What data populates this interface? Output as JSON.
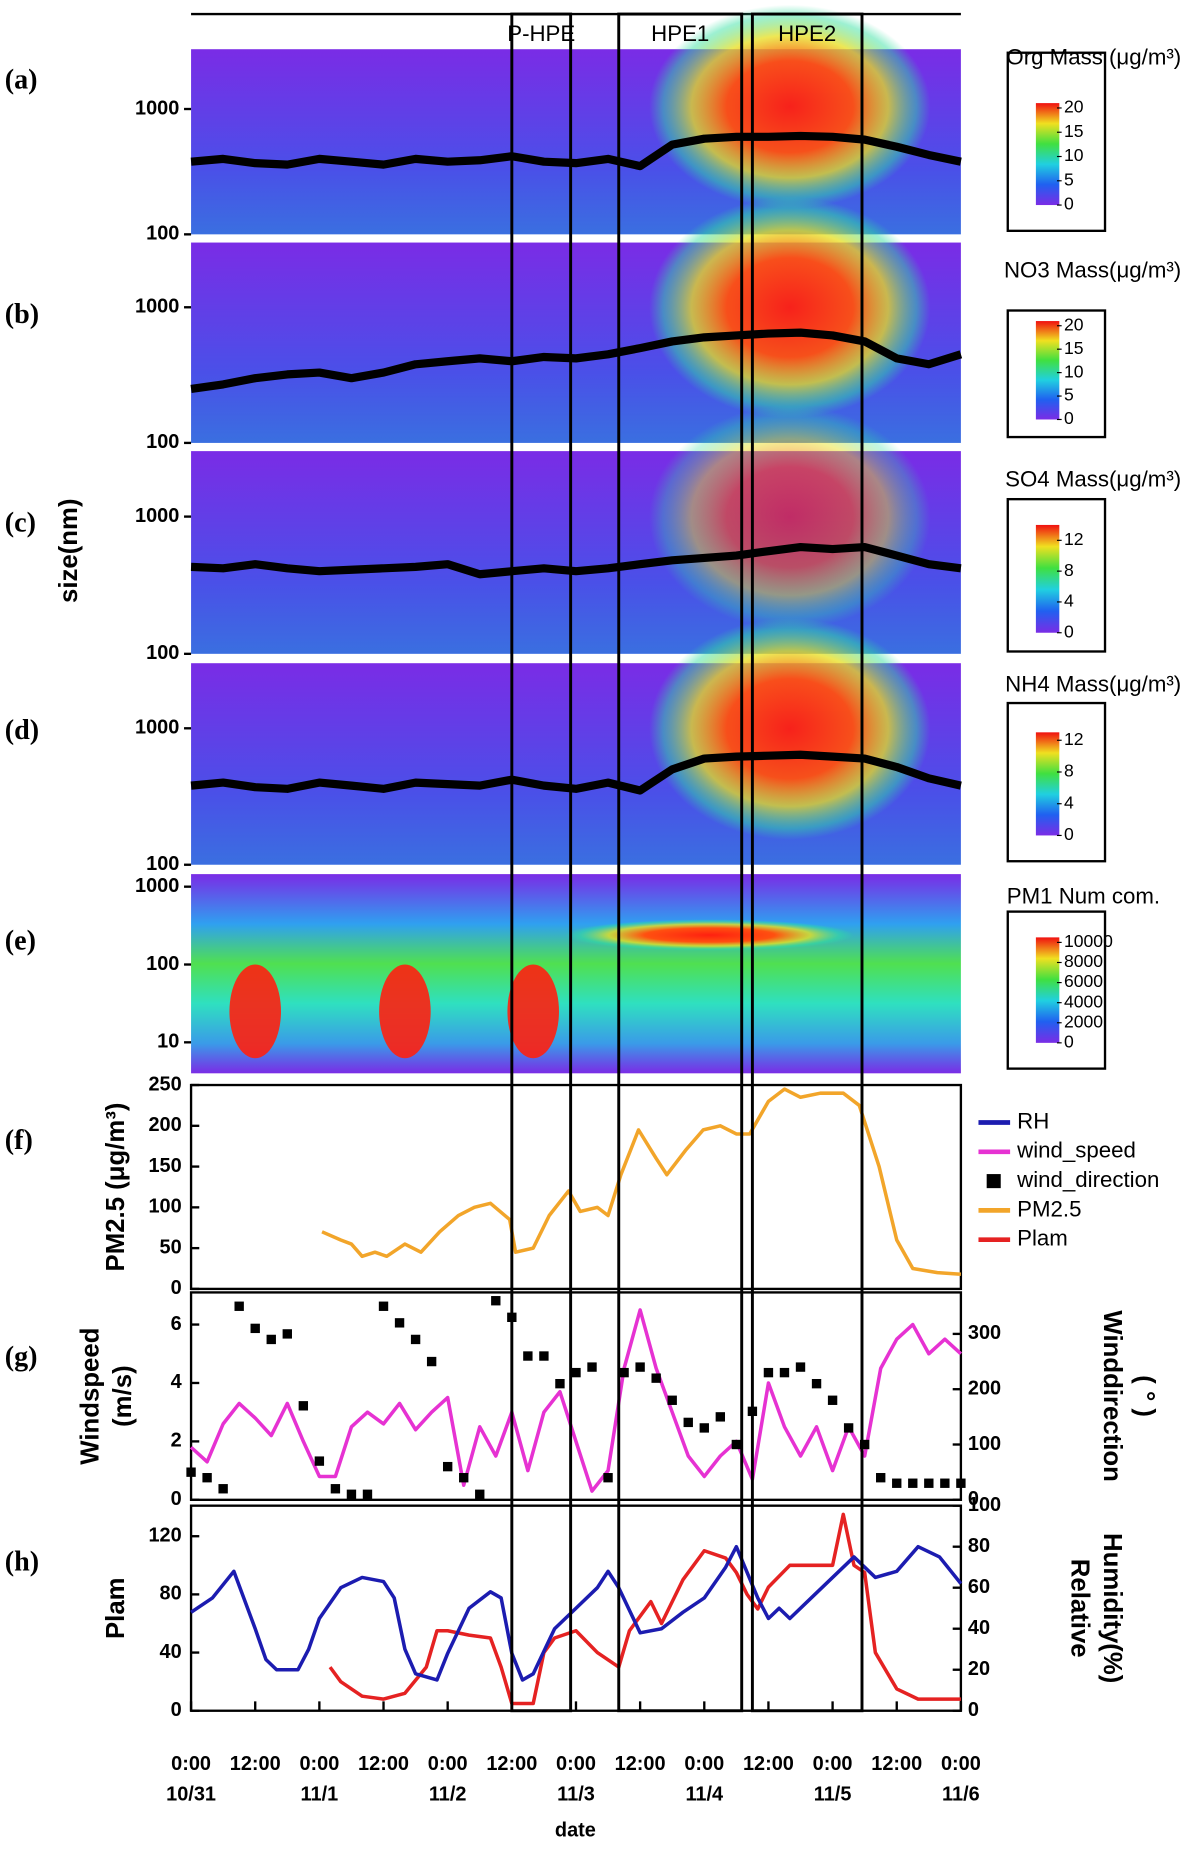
{
  "shared": {
    "xlim": [
      0,
      144
    ],
    "xlabel": "date",
    "ylabel": "size(nm)",
    "xticks": [
      {
        "value": 0,
        "label": "0:00"
      },
      {
        "value": 12,
        "label": "12:00"
      },
      {
        "value": 24,
        "label": "0:00"
      },
      {
        "value": 36,
        "label": "12:00"
      },
      {
        "value": 48,
        "label": "0:00"
      },
      {
        "value": 60,
        "label": "12:00"
      },
      {
        "value": 72,
        "label": "0:00"
      },
      {
        "value": 84,
        "label": "12:00"
      },
      {
        "value": 96,
        "label": "0:00"
      },
      {
        "value": 108,
        "label": "12:00"
      },
      {
        "value": 120,
        "label": "0:00"
      },
      {
        "value": 132,
        "label": "12:00"
      },
      {
        "value": 144,
        "label": "0:00"
      }
    ],
    "xtick_dates": [
      {
        "value": 0,
        "label": "10/31"
      },
      {
        "value": 24,
        "label": "11/1"
      },
      {
        "value": 48,
        "label": "11/2"
      },
      {
        "value": 72,
        "label": "11/3"
      },
      {
        "value": 96,
        "label": "11/4"
      },
      {
        "value": 120,
        "label": "11/5"
      },
      {
        "value": 144,
        "label": "11/6"
      }
    ],
    "annotations": [
      {
        "label": "P-HPE",
        "x": [
          60,
          71
        ]
      },
      {
        "label": "HPE1",
        "x": [
          80,
          103
        ]
      },
      {
        "label": "HPE2",
        "x": [
          105,
          125.5
        ]
      }
    ]
  },
  "chart_data": [
    {
      "type": "heatmap",
      "panel": "(a)",
      "title": "Org Mass (μg/m³)",
      "log_y": true,
      "ylim": [
        100,
        3000
      ],
      "yticks": [
        100,
        1000
      ],
      "colorbar": {
        "clim": [
          0,
          21
        ],
        "ticks": [
          0,
          5,
          10,
          15,
          20
        ]
      },
      "series": [
        {
          "color": "#000000",
          "x": [
            0,
            6,
            12,
            18,
            24,
            30,
            36,
            42,
            48,
            54,
            60,
            66,
            72,
            78,
            84,
            90,
            96,
            102,
            108,
            114,
            120,
            126,
            132,
            138,
            144
          ],
          "values": [
            380,
            400,
            370,
            360,
            400,
            380,
            360,
            400,
            380,
            390,
            420,
            380,
            370,
            400,
            350,
            520,
            580,
            600,
            600,
            610,
            600,
            570,
            500,
            430,
            380
          ]
        }
      ]
    },
    {
      "type": "heatmap",
      "panel": "(b)",
      "title": "NO3 Mass(μg/m³)",
      "log_y": true,
      "ylim": [
        100,
        3000
      ],
      "yticks": [
        100,
        1000
      ],
      "colorbar": {
        "clim": [
          0,
          21
        ],
        "ticks": [
          0,
          5,
          10,
          15,
          20
        ]
      },
      "series": [
        {
          "color": "#000000",
          "x": [
            0,
            6,
            12,
            18,
            24,
            30,
            36,
            42,
            48,
            54,
            60,
            66,
            72,
            78,
            84,
            90,
            96,
            102,
            108,
            114,
            120,
            126,
            132,
            138,
            144
          ],
          "values": [
            250,
            270,
            300,
            320,
            330,
            300,
            330,
            380,
            400,
            420,
            400,
            430,
            420,
            450,
            500,
            560,
            600,
            620,
            640,
            650,
            620,
            560,
            420,
            380,
            450
          ]
        }
      ]
    },
    {
      "type": "heatmap",
      "panel": "(c)",
      "title": "SO4 Mass(μg/m³)",
      "log_y": true,
      "ylim": [
        100,
        3000
      ],
      "yticks": [
        100,
        1000
      ],
      "colorbar": {
        "clim": [
          0,
          14
        ],
        "ticks": [
          0,
          4,
          8,
          12
        ]
      },
      "series": [
        {
          "color": "#000000",
          "x": [
            0,
            6,
            12,
            18,
            24,
            30,
            36,
            42,
            48,
            54,
            60,
            66,
            72,
            78,
            84,
            90,
            96,
            102,
            108,
            114,
            120,
            126,
            132,
            138,
            144
          ],
          "values": [
            430,
            420,
            450,
            420,
            400,
            410,
            420,
            430,
            450,
            380,
            400,
            420,
            400,
            420,
            450,
            480,
            500,
            520,
            560,
            600,
            580,
            600,
            520,
            450,
            420
          ]
        }
      ]
    },
    {
      "type": "heatmap",
      "panel": "(d)",
      "title": "NH4 Mass(μg/m³)",
      "log_y": true,
      "ylim": [
        100,
        3000
      ],
      "yticks": [
        100,
        1000
      ],
      "colorbar": {
        "clim": [
          0,
          13
        ],
        "ticks": [
          0,
          4,
          8,
          12
        ]
      },
      "series": [
        {
          "color": "#000000",
          "x": [
            0,
            6,
            12,
            18,
            24,
            30,
            36,
            42,
            48,
            54,
            60,
            66,
            72,
            78,
            84,
            90,
            96,
            102,
            108,
            114,
            120,
            126,
            132,
            138,
            144
          ],
          "values": [
            380,
            400,
            370,
            360,
            400,
            380,
            360,
            400,
            390,
            380,
            420,
            380,
            360,
            400,
            350,
            500,
            600,
            620,
            630,
            640,
            620,
            600,
            520,
            430,
            380
          ]
        }
      ]
    },
    {
      "type": "heatmap",
      "panel": "(e)",
      "title": "PM1 Num com.",
      "log_y": true,
      "ylim": [
        4,
        1450
      ],
      "yticks": [
        10,
        100,
        1000
      ],
      "colorbar": {
        "clim": [
          0,
          10500
        ],
        "ticks": [
          0,
          2000,
          4000,
          6000,
          8000,
          10000
        ]
      },
      "series": []
    },
    {
      "type": "line",
      "panel": "(f)",
      "ylabel": [
        "PM2.5 (μg/m³)"
      ],
      "ylim": [
        0,
        250
      ],
      "yticks": [
        0,
        50,
        100,
        150,
        200,
        250
      ],
      "series": [
        {
          "name": "PM2.5",
          "color": "#f2a52a",
          "type": "line",
          "x": [
            24.5,
            28,
            30,
            32,
            34.4,
            36.6,
            40,
            43,
            46.5,
            50,
            53,
            56,
            59.6,
            60.7,
            64,
            67,
            70.6,
            72.8,
            76,
            78,
            80.4,
            83.7,
            87,
            89,
            92.5,
            95.8,
            99,
            102,
            104.5,
            108,
            111,
            114,
            117.7,
            122,
            125,
            128.7,
            132,
            135,
            139.6,
            144
          ],
          "values": [
            70,
            60,
            55,
            40,
            45,
            40,
            55,
            45,
            70,
            90,
            100,
            105,
            85,
            45,
            50,
            90,
            120,
            95,
            100,
            90,
            140,
            195,
            160,
            140,
            170,
            195,
            200,
            190,
            190,
            230,
            245,
            235,
            240,
            240,
            225,
            150,
            60,
            25,
            20,
            18
          ]
        }
      ]
    },
    {
      "type": "line",
      "panel": "(g)",
      "ylabel": [
        "Windspeed",
        "(m/s)"
      ],
      "y2label": [
        "Winddirection",
        "( ° )"
      ],
      "ylim": [
        0,
        7.1
      ],
      "yticks": [
        0,
        2,
        4,
        6
      ],
      "y2lim": [
        0,
        375
      ],
      "y2ticks": [
        0,
        100,
        200,
        300
      ],
      "series": [
        {
          "name": "wind_speed",
          "color": "#e632d2",
          "type": "line",
          "x": [
            0,
            3,
            6,
            9,
            12,
            15,
            18,
            21,
            24,
            27,
            30,
            33,
            36,
            39,
            42,
            45,
            48,
            51,
            54,
            57,
            60,
            63,
            66,
            69,
            72,
            75,
            78,
            81,
            84,
            87,
            90,
            93,
            96,
            99,
            102,
            105,
            108,
            111,
            114,
            117,
            120,
            123,
            126,
            129,
            132,
            135,
            138,
            141,
            144
          ],
          "values": [
            1.8,
            1.3,
            2.6,
            3.3,
            2.8,
            2.2,
            3.3,
            2.0,
            0.8,
            0.8,
            2.5,
            3.0,
            2.6,
            3.3,
            2.4,
            3.0,
            3.5,
            0.5,
            2.5,
            1.5,
            3.0,
            1.0,
            3.0,
            3.7,
            2.0,
            0.3,
            1.0,
            4.5,
            6.5,
            4.5,
            3.0,
            1.5,
            0.8,
            1.5,
            2.0,
            0.7,
            4.0,
            2.5,
            1.5,
            2.5,
            1.0,
            2.5,
            1.5,
            4.5,
            5.5,
            6.0,
            5.0,
            5.5,
            5.0
          ]
        },
        {
          "name": "wind_direction",
          "color": "#000000",
          "type": "scatter",
          "axis": "y2",
          "x": [
            0,
            3,
            6,
            9,
            12,
            15,
            18,
            21,
            24,
            27,
            30,
            33,
            36,
            39,
            42,
            45,
            48,
            51,
            54,
            57,
            60,
            63,
            66,
            69,
            72,
            75,
            78,
            81,
            84,
            87,
            90,
            93,
            96,
            99,
            102,
            105,
            108,
            111,
            114,
            117,
            120,
            123,
            126,
            129,
            132,
            135,
            138,
            141,
            144
          ],
          "values": [
            50,
            40,
            20,
            350,
            310,
            290,
            300,
            170,
            70,
            20,
            10,
            10,
            350,
            320,
            290,
            250,
            60,
            40,
            10,
            360,
            330,
            260,
            260,
            210,
            230,
            240,
            40,
            230,
            240,
            220,
            180,
            140,
            130,
            150,
            100,
            160,
            230,
            230,
            240,
            210,
            180,
            130,
            100,
            40,
            30,
            30,
            30,
            30,
            30
          ]
        }
      ]
    },
    {
      "type": "line",
      "panel": "(h)",
      "ylabel": [
        "Plam"
      ],
      "y2label": [
        "Relative",
        "Humidity(%)"
      ],
      "ylim": [
        0,
        141
      ],
      "yticks": [
        0,
        40,
        80,
        120
      ],
      "y2lim": [
        0,
        100
      ],
      "y2ticks": [
        0,
        20,
        40,
        60,
        80,
        100
      ],
      "series": [
        {
          "name": "Plam",
          "color": "#e52222",
          "type": "line",
          "x": [
            26,
            28,
            32,
            36,
            40,
            44,
            46,
            48,
            52,
            56,
            58,
            60,
            64,
            66,
            68,
            72,
            76,
            80,
            82,
            86,
            88,
            92,
            96,
            100,
            102,
            104,
            106,
            108,
            112,
            116,
            120,
            122,
            124,
            126,
            128,
            132,
            136,
            140,
            144
          ],
          "values": [
            30,
            20,
            10,
            8,
            12,
            30,
            55,
            55,
            52,
            50,
            30,
            5,
            5,
            40,
            50,
            55,
            40,
            30,
            55,
            75,
            60,
            90,
            110,
            105,
            95,
            80,
            70,
            85,
            100,
            100,
            100,
            135,
            100,
            95,
            40,
            15,
            8,
            8,
            8
          ]
        },
        {
          "name": "RH",
          "color": "#1c1cb0",
          "type": "line",
          "axis": "y2",
          "x": [
            0,
            4,
            8,
            12,
            14,
            16,
            20,
            22,
            24,
            28,
            32,
            36,
            38,
            40,
            42,
            46,
            48,
            52,
            56,
            58,
            60,
            62,
            64,
            68,
            72,
            76,
            78,
            80,
            84,
            88,
            92,
            96,
            100,
            102,
            106,
            108,
            110,
            112,
            116,
            120,
            124,
            128,
            132,
            136,
            140,
            144
          ],
          "values": [
            48,
            55,
            68,
            40,
            25,
            20,
            20,
            30,
            45,
            60,
            65,
            63,
            55,
            30,
            18,
            15,
            28,
            50,
            58,
            55,
            28,
            15,
            18,
            40,
            50,
            60,
            68,
            60,
            38,
            40,
            48,
            55,
            70,
            80,
            55,
            45,
            50,
            45,
            55,
            65,
            75,
            65,
            68,
            80,
            75,
            62
          ]
        }
      ]
    }
  ]
}
